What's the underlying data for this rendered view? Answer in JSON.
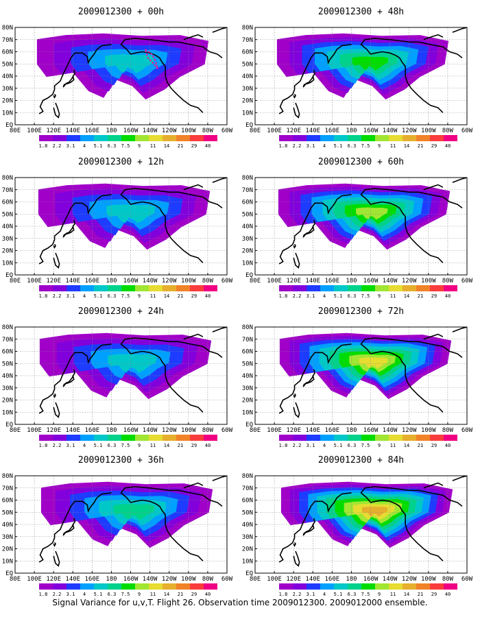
{
  "figure": {
    "caption": "Signal Variance for u,v,T. Flight 26. Observation time 2009012300. 2009012000 ensemble."
  },
  "colors": {
    "land_outline": "#000000",
    "grid": "#888888",
    "observation_track": "#e8189c"
  },
  "chart_data": {
    "type": "heatmap",
    "x_ticks": [
      "80E",
      "100E",
      "120E",
      "140E",
      "160E",
      "180",
      "160W",
      "140W",
      "120W",
      "100W",
      "80W",
      "60W"
    ],
    "y_ticks": [
      "EQ",
      "10N",
      "20N",
      "30N",
      "40N",
      "50N",
      "60N",
      "70N",
      "80N"
    ],
    "xlim": [
      "80E",
      "60W"
    ],
    "ylim": [
      "EQ",
      "80N"
    ],
    "grid": true,
    "colorbar": {
      "labels": [
        "1.8",
        "2.2",
        "3.1",
        "4",
        "5.1",
        "6.3",
        "7.5",
        "9",
        "11",
        "14",
        "21",
        "29",
        "40"
      ],
      "colors": [
        "#a000c8",
        "#8200dc",
        "#1e3cff",
        "#00a0ff",
        "#00c8c8",
        "#00d28c",
        "#00dc00",
        "#a0e632",
        "#e6dc32",
        "#e6af2d",
        "#f08228",
        "#fa3c3c",
        "#f00082"
      ]
    },
    "panels": [
      {
        "title": "2009012300 + 00h",
        "max_level": 5
      },
      {
        "title": "2009012300 + 12h",
        "max_level": 5
      },
      {
        "title": "2009012300 + 24h",
        "max_level": 5
      },
      {
        "title": "2009012300 + 36h",
        "max_level": 6
      },
      {
        "title": "2009012300 + 48h",
        "max_level": 7
      },
      {
        "title": "2009012300 + 60h",
        "max_level": 8
      },
      {
        "title": "2009012300 + 72h",
        "max_level": 9
      },
      {
        "title": "2009012300 + 84h",
        "max_level": 10
      }
    ]
  }
}
